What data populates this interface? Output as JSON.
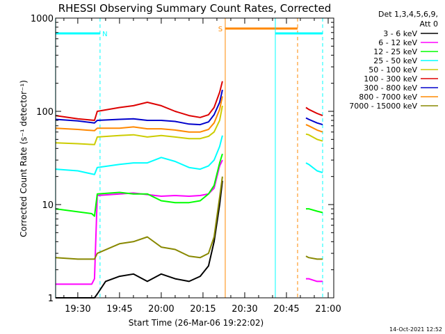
{
  "chart_data": {
    "type": "line",
    "title": "RHESSI Observing Summary Count Rates, Corrected",
    "xlabel": "Start Time (26-Mar-06 19:22:02)",
    "ylabel": "Corrected Count Rate (s⁻¹ detector⁻¹)",
    "y_scale": "log",
    "ylim": [
      1,
      1000
    ],
    "xlim": [
      "19:22:02",
      "21:02:00"
    ],
    "x_ticks": [
      "19:30",
      "19:45",
      "20:00",
      "20:15",
      "20:30",
      "20:45",
      "21:00"
    ],
    "y_ticks": [
      "1",
      "10",
      "100",
      "1000"
    ],
    "legend": {
      "placement": "right",
      "header": [
        "Det 1,3,4,5,6,9,",
        "Att 0"
      ]
    },
    "series": [
      {
        "name": "3 - 6 keV",
        "color": "#000000",
        "segments": [
          {
            "x": [
              "19:22",
              "19:36",
              "19:37",
              "19:40",
              "19:45",
              "19:50",
              "19:55",
              "20:00",
              "20:05",
              "20:10",
              "20:14",
              "20:17",
              "20:19",
              "20:21",
              "20:22"
            ],
            "y": [
              1.0,
              1.0,
              1.1,
              1.5,
              1.7,
              1.8,
              1.5,
              1.8,
              1.6,
              1.5,
              1.7,
              2.2,
              4,
              10,
              18
            ]
          }
        ]
      },
      {
        "name": "6 - 12 keV",
        "color": "#ff00ff",
        "segments": [
          {
            "x": [
              "19:22",
              "19:35",
              "19:36",
              "19:37",
              "19:45",
              "19:50",
              "19:55",
              "20:00",
              "20:05",
              "20:10",
              "20:14",
              "20:17",
              "20:19",
              "20:21",
              "20:22"
            ],
            "y": [
              1.4,
              1.4,
              1.6,
              12.5,
              13,
              13.3,
              12.8,
              12.3,
              12.5,
              12.3,
              12.5,
              13,
              15,
              26,
              30
            ]
          },
          {
            "x": [
              "20:52",
              "20:53",
              "20:56",
              "20:58"
            ],
            "y": [
              1.6,
              1.6,
              1.5,
              1.5
            ]
          }
        ]
      },
      {
        "name": "12 - 25 keV",
        "color": "#00ff00",
        "segments": [
          {
            "x": [
              "19:22",
              "19:35",
              "19:36",
              "19:37",
              "19:45",
              "19:50",
              "19:55",
              "20:00",
              "20:05",
              "20:10",
              "20:14",
              "20:17",
              "20:19",
              "20:21",
              "20:22"
            ],
            "y": [
              9,
              8,
              7.5,
              13,
              13.5,
              13,
              13,
              11,
              10.5,
              10.5,
              11,
              13,
              16,
              28,
              35
            ]
          },
          {
            "x": [
              "20:52",
              "20:53",
              "20:56",
              "20:58"
            ],
            "y": [
              9,
              9,
              8.5,
              8.2
            ]
          }
        ]
      },
      {
        "name": "25 - 50 keV",
        "color": "#00ffff",
        "segments": [
          {
            "x": [
              "19:22",
              "19:30",
              "19:36",
              "19:37",
              "19:45",
              "19:50",
              "19:55",
              "20:00",
              "20:05",
              "20:10",
              "20:14",
              "20:17",
              "20:19",
              "20:21",
              "20:22"
            ],
            "y": [
              24,
              23,
              21,
              25,
              27,
              28,
              28,
              32,
              29,
              25,
              24,
              26,
              30,
              42,
              55
            ]
          },
          {
            "x": [
              "20:52",
              "20:53",
              "20:56",
              "20:58"
            ],
            "y": [
              28,
              27,
              23,
              22
            ]
          }
        ]
      },
      {
        "name": "50 - 100 keV",
        "color": "#cccc00",
        "segments": [
          {
            "x": [
              "19:22",
              "19:30",
              "19:36",
              "19:37",
              "19:45",
              "19:50",
              "19:55",
              "20:00",
              "20:05",
              "20:10",
              "20:14",
              "20:17",
              "20:19",
              "20:21",
              "20:22"
            ],
            "y": [
              46,
              45,
              44,
              53,
              55,
              56,
              53,
              55,
              53,
              51,
              51,
              54,
              60,
              80,
              115
            ]
          },
          {
            "x": [
              "20:52",
              "20:53",
              "20:56",
              "20:58"
            ],
            "y": [
              57,
              56,
              50,
              48
            ]
          }
        ]
      },
      {
        "name": "100 - 300 keV",
        "color": "#dd0000",
        "segments": [
          {
            "x": [
              "19:22",
              "19:30",
              "19:36",
              "19:37",
              "19:45",
              "19:50",
              "19:55",
              "20:00",
              "20:05",
              "20:10",
              "20:14",
              "20:17",
              "20:19",
              "20:21",
              "20:22"
            ],
            "y": [
              90,
              83,
              80,
              100,
              110,
              115,
              125,
              115,
              100,
              90,
              86,
              92,
              110,
              160,
              210
            ]
          },
          {
            "x": [
              "20:52",
              "20:53",
              "20:56",
              "20:58"
            ],
            "y": [
              110,
              105,
              95,
              90
            ]
          }
        ]
      },
      {
        "name": "300 - 800 keV",
        "color": "#0000cc",
        "segments": [
          {
            "x": [
              "19:22",
              "19:30",
              "19:36",
              "19:37",
              "19:45",
              "19:50",
              "19:55",
              "20:00",
              "20:05",
              "20:10",
              "20:14",
              "20:17",
              "20:19",
              "20:21",
              "20:22"
            ],
            "y": [
              82,
              79,
              75,
              80,
              82,
              83,
              80,
              80,
              78,
              73,
              72,
              77,
              92,
              125,
              170
            ]
          },
          {
            "x": [
              "20:52",
              "20:53",
              "20:56",
              "20:58"
            ],
            "y": [
              85,
              82,
              75,
              72
            ]
          }
        ]
      },
      {
        "name": "800 - 7000 keV",
        "color": "#ff8800",
        "segments": [
          {
            "x": [
              "19:22",
              "19:30",
              "19:36",
              "19:37",
              "19:45",
              "19:50",
              "19:55",
              "20:00",
              "20:05",
              "20:10",
              "20:14",
              "20:17",
              "20:19",
              "20:21",
              "20:22"
            ],
            "y": [
              66,
              64,
              62,
              66,
              66,
              68,
              65,
              65,
              63,
              60,
              60,
              64,
              75,
              105,
              145
            ]
          },
          {
            "x": [
              "20:52",
              "20:53",
              "20:56",
              "20:58"
            ],
            "y": [
              72,
              70,
              63,
              60
            ]
          }
        ]
      },
      {
        "name": "7000 - 15000 keV",
        "color": "#888800",
        "segments": [
          {
            "x": [
              "19:22",
              "19:30",
              "19:36",
              "19:37",
              "19:45",
              "19:50",
              "19:55",
              "20:00",
              "20:05",
              "20:10",
              "20:14",
              "20:17",
              "20:19",
              "20:21",
              "20:22"
            ],
            "y": [
              2.7,
              2.6,
              2.6,
              3.0,
              3.8,
              4.0,
              4.5,
              3.5,
              3.3,
              2.8,
              2.7,
              3.0,
              4.5,
              12,
              20
            ]
          },
          {
            "x": [
              "20:52",
              "20:53",
              "20:56",
              "20:58"
            ],
            "y": [
              2.8,
              2.7,
              2.6,
              2.6
            ]
          }
        ]
      }
    ],
    "annotations": [
      {
        "text": "N",
        "color": "#00ffff",
        "kind": "night",
        "span": [
          "19:22",
          "19:38"
        ]
      },
      {
        "text": "S",
        "color": "#ff8800",
        "kind": "saa",
        "span": [
          "20:23",
          "20:49"
        ]
      },
      {
        "text": "",
        "color": "#00ffff",
        "kind": "night",
        "span": [
          "20:41",
          "20:58"
        ]
      }
    ]
  },
  "footer": {
    "date_stamp": "14-Oct-2021 12:52"
  }
}
